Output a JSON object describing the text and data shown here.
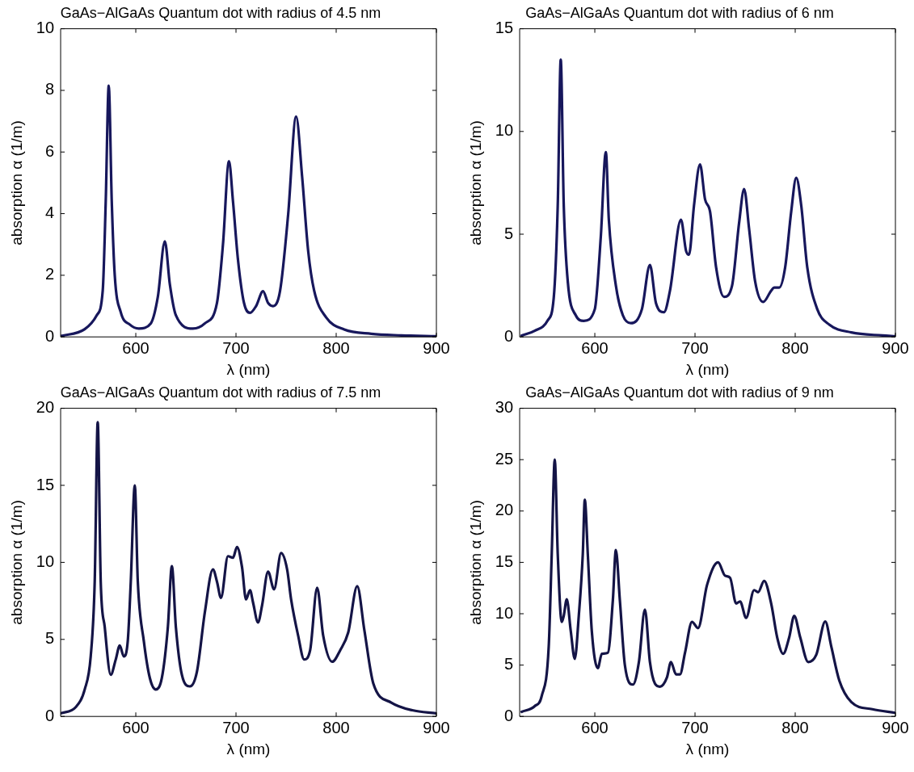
{
  "chart_data": [
    {
      "type": "line",
      "title": "GaAs−AlGaAs Quantum dot with radius of 4.5 nm",
      "xlabel": "λ (nm)",
      "ylabel": "absorption α (1/m)",
      "xlim": [
        525,
        900
      ],
      "xticks": [
        600,
        700,
        800,
        900
      ],
      "ylim": [
        0,
        10
      ],
      "yticks": [
        0,
        2,
        4,
        6,
        8,
        10
      ],
      "grid": false,
      "legend": false,
      "line_style": "solid",
      "series": [
        {
          "color": "#17175c",
          "x": [
            525,
            549,
            561,
            567,
            570,
            573,
            576,
            579,
            585,
            594,
            603,
            615,
            622,
            629,
            634,
            640,
            657,
            669,
            681,
            687,
            693,
            697,
            702,
            708,
            714,
            720,
            727,
            732,
            737,
            744,
            752,
            760,
            766,
            772,
            778,
            790,
            808,
            835,
            865,
            900
          ],
          "values": [
            0.03,
            0.25,
            0.7,
            1.5,
            4.4,
            8.15,
            4.4,
            2,
            0.8,
            0.4,
            0.27,
            0.44,
            1.3,
            3.1,
            1.7,
            0.7,
            0.27,
            0.44,
            1.1,
            3.0,
            5.7,
            4.4,
            2.5,
            1.1,
            0.78,
            1.0,
            1.48,
            1.1,
            1.0,
            1.5,
            3.95,
            7.15,
            5.2,
            2.8,
            1.5,
            0.63,
            0.24,
            0.1,
            0.05,
            0.02
          ]
        }
      ]
    },
    {
      "type": "line",
      "title": "GaAs−AlGaAs Quantum dot with radius of 6 nm",
      "xlabel": "λ (nm)",
      "ylabel": "absorption α (1/m)",
      "xlim": [
        525,
        900
      ],
      "xticks": [
        600,
        700,
        800,
        900
      ],
      "ylim": [
        0,
        15
      ],
      "yticks": [
        0,
        5,
        10,
        15
      ],
      "grid": false,
      "legend": false,
      "line_style": "solid",
      "series": [
        {
          "color": "#17175c",
          "x": [
            527,
            540,
            553,
            559,
            563,
            566,
            569,
            573,
            581,
            589,
            600,
            606,
            611,
            614,
            621,
            628,
            636,
            647,
            655,
            661,
            669,
            675,
            686,
            691,
            694,
            699,
            705,
            710,
            715,
            721,
            729,
            737,
            744,
            749,
            754,
            760,
            768,
            776,
            779,
            784,
            790,
            796,
            801,
            806,
            812,
            822,
            834,
            856,
            887,
            900
          ],
          "values": [
            0.07,
            0.3,
            0.8,
            1.9,
            6.4,
            13.5,
            6.4,
            2.7,
            1.05,
            0.78,
            1.35,
            4.9,
            9.0,
            5.7,
            2.5,
            1.05,
            0.67,
            1.35,
            3.5,
            1.65,
            1.2,
            2.25,
            5.7,
            4.2,
            4.0,
            6.4,
            8.4,
            6.7,
            6.1,
            3.4,
            1.95,
            2.5,
            5.55,
            7.2,
            5.25,
            2.7,
            1.7,
            2.25,
            2.4,
            2.4,
            3.4,
            6.1,
            7.75,
            6.4,
            3.4,
            1.35,
            0.6,
            0.22,
            0.07,
            0.03
          ]
        }
      ]
    },
    {
      "type": "line",
      "title": "GaAs−AlGaAs Quantum dot with radius of 7.5 nm",
      "xlabel": "λ (nm)",
      "ylabel": "absorption α (1/m)",
      "xlim": [
        525,
        900
      ],
      "xticks": [
        600,
        700,
        800,
        900
      ],
      "ylim": [
        0,
        20
      ],
      "yticks": [
        0,
        5,
        10,
        15,
        20
      ],
      "grid": false,
      "legend": false,
      "line_style": "solid",
      "series": [
        {
          "color": "#141446",
          "x": [
            525,
            540,
            549,
            555,
            559,
            562,
            565,
            569,
            575,
            580,
            584,
            588,
            592,
            595,
            599,
            602,
            608,
            614,
            620,
            626,
            632,
            636,
            640,
            646,
            654,
            661,
            669,
            677,
            681,
            685,
            692,
            697,
            701,
            706,
            710,
            714,
            717,
            722,
            726,
            732,
            738,
            745,
            751,
            755,
            762,
            768,
            774,
            781,
            787,
            796,
            804,
            812,
            821,
            828,
            837,
            855,
            876,
            900
          ],
          "values": [
            0.2,
            0.6,
            1.75,
            3.9,
            8.75,
            19.1,
            8.75,
            5.8,
            2.7,
            3.7,
            4.6,
            3.9,
            4.9,
            8.75,
            15.0,
            8.75,
            4.9,
            2.5,
            1.75,
            2.5,
            5.8,
            9.75,
            5.8,
            2.7,
            1.95,
            2.9,
            6.8,
            9.55,
            8.75,
            7.7,
            10.4,
            10.3,
            11.0,
            9.7,
            7.6,
            8.2,
            7.4,
            6.1,
            7.2,
            9.4,
            8.25,
            10.6,
            9.55,
            7.6,
            5.25,
            3.7,
            4.3,
            8.35,
            5.25,
            3.55,
            4.3,
            5.45,
            8.45,
            5.65,
            2.15,
            0.9,
            0.4,
            0.2
          ]
        }
      ]
    },
    {
      "type": "line",
      "title": "GaAs−AlGaAs Quantum dot with radius of 9 nm",
      "xlabel": "λ (nm)",
      "ylabel": "absorption α (1/m)",
      "xlim": [
        525,
        900
      ],
      "xticks": [
        600,
        700,
        800,
        900
      ],
      "ylim": [
        0,
        30
      ],
      "yticks": [
        0,
        5,
        10,
        15,
        20,
        25,
        30
      ],
      "grid": false,
      "legend": false,
      "line_style": "solid",
      "series": [
        {
          "color": "#141446",
          "x": [
            527,
            540,
            547,
            554,
            557,
            560,
            563,
            567,
            569,
            572,
            576,
            580,
            584,
            588,
            590,
            593,
            597,
            603,
            607,
            613,
            618,
            621,
            625,
            630,
            638,
            644,
            650,
            655,
            660,
            665,
            672,
            676,
            681,
            685,
            690,
            697,
            703,
            712,
            723,
            730,
            735,
            741,
            745,
            751,
            759,
            763,
            769,
            776,
            782,
            788,
            794,
            799,
            805,
            813,
            821,
            830,
            836,
            844,
            856,
            877,
            900
          ],
          "values": [
            0.45,
            1.0,
            2.0,
            6.8,
            15.8,
            25.0,
            15.8,
            9.2,
            9.8,
            11.4,
            8.3,
            5.6,
            9.8,
            15.8,
            21.1,
            15.8,
            8.3,
            4.7,
            6.1,
            6.2,
            11.3,
            16.2,
            11.3,
            5.0,
            3.1,
            5.3,
            10.4,
            5.3,
            3.2,
            2.9,
            3.8,
            5.3,
            4.1,
            4.1,
            6.2,
            9.2,
            8.6,
            12.8,
            15.0,
            13.7,
            13.5,
            11.0,
            11.2,
            9.6,
            12.3,
            12.1,
            13.2,
            11.0,
            7.7,
            6.1,
            7.7,
            9.8,
            7.7,
            5.3,
            6.0,
            9.25,
            6.8,
            3.5,
            1.4,
            0.7,
            0.35
          ]
        }
      ]
    }
  ]
}
